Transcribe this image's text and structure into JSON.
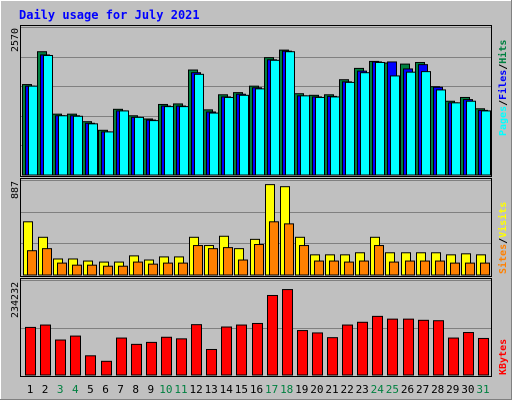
{
  "chart_data": [
    {
      "type": "bar",
      "title": "Daily usage for July 2021",
      "categories": [
        "1",
        "2",
        "3",
        "4",
        "5",
        "6",
        "7",
        "8",
        "9",
        "10",
        "11",
        "12",
        "13",
        "14",
        "15",
        "16",
        "17",
        "18",
        "19",
        "20",
        "21",
        "22",
        "23",
        "24",
        "25",
        "26",
        "27",
        "28",
        "29",
        "30",
        "31"
      ],
      "weekend_days": [
        "3",
        "4",
        "10",
        "11",
        "17",
        "18",
        "24",
        "25",
        "31"
      ],
      "ytick_label": "2570",
      "ylim": [
        0,
        2750
      ],
      "series": [
        {
          "name": "Hits",
          "color": "#008040",
          "values": [
            1690,
            2300,
            1140,
            1140,
            1000,
            840,
            1230,
            1110,
            1050,
            1320,
            1330,
            1960,
            1220,
            1500,
            1540,
            1660,
            2190,
            2330,
            1520,
            1490,
            1500,
            1780,
            1990,
            2120,
            2090,
            2070,
            2100,
            1650,
            1380,
            1450,
            1240
          ]
        },
        {
          "name": "Files",
          "color": "#0000ff",
          "values": [
            1660,
            2240,
            1110,
            1110,
            970,
            810,
            1200,
            1080,
            1030,
            1290,
            1290,
            1910,
            1180,
            1460,
            1510,
            1630,
            2150,
            2310,
            1480,
            1460,
            1470,
            1740,
            1940,
            2110,
            2110,
            1980,
            2060,
            1640,
            1350,
            1410,
            1210
          ]
        },
        {
          "name": "Pages",
          "color": "#00ffff",
          "values": [
            1660,
            2230,
            1110,
            1100,
            960,
            810,
            1200,
            1080,
            1020,
            1280,
            1280,
            1880,
            1160,
            1450,
            1490,
            1610,
            2140,
            2300,
            1480,
            1450,
            1460,
            1730,
            1910,
            2100,
            1850,
            1920,
            1930,
            1590,
            1350,
            1380,
            1200
          ]
        }
      ]
    },
    {
      "type": "bar",
      "ytick_label": "887",
      "ylim": [
        0,
        920
      ],
      "series": [
        {
          "name": "Visits",
          "color": "#ffff00",
          "values": [
            520,
            370,
            160,
            160,
            140,
            130,
            130,
            190,
            150,
            180,
            180,
            370,
            290,
            380,
            260,
            350,
            880,
            860,
            370,
            200,
            200,
            200,
            220,
            370,
            220,
            220,
            220,
            220,
            200,
            210,
            200
          ]
        },
        {
          "name": "Sites",
          "color": "#ff8000",
          "values": [
            240,
            260,
            120,
            100,
            100,
            90,
            90,
            130,
            110,
            120,
            120,
            290,
            260,
            270,
            150,
            300,
            520,
            500,
            290,
            140,
            140,
            130,
            140,
            290,
            130,
            140,
            140,
            140,
            120,
            120,
            120
          ]
        }
      ]
    },
    {
      "type": "bar",
      "ytick_label": "234232",
      "ylim": [
        0,
        241000
      ],
      "series": [
        {
          "name": "KBytes",
          "color": "#ff0000",
          "values": [
            122000,
            128000,
            90000,
            100000,
            50000,
            36000,
            95000,
            79000,
            84000,
            97000,
            93000,
            129000,
            66000,
            123000,
            128000,
            132000,
            203000,
            218000,
            114000,
            108000,
            96000,
            128000,
            135000,
            150000,
            143000,
            143000,
            140000,
            139000,
            95000,
            109000,
            94000
          ]
        }
      ]
    }
  ],
  "legend": {
    "top": [
      "Pages",
      "Files",
      "Hits"
    ],
    "mid": [
      "Sites",
      "Visits"
    ],
    "bottom": [
      "KBytes"
    ],
    "separator": "/"
  },
  "colors": {
    "background": "#c0c0c0",
    "title": "#0000ff",
    "weekend_label": "#008040",
    "weekday_label": "#000000",
    "bar_edge": "#000000",
    "grid": "#808080"
  }
}
